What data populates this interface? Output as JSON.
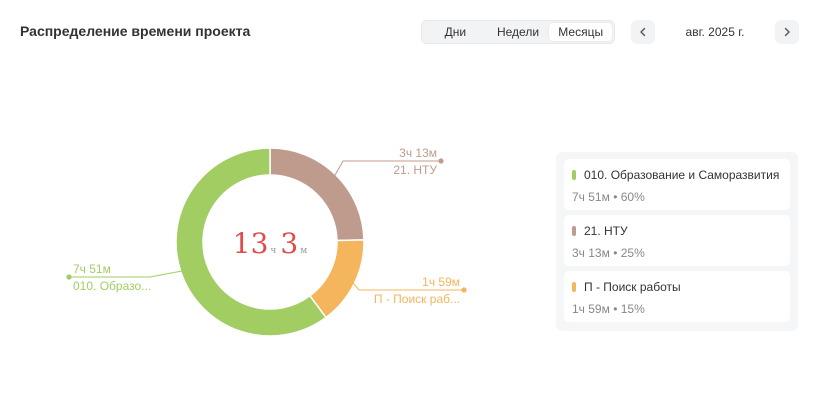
{
  "header": {
    "title": "Распределение времени проекта",
    "tabs": [
      {
        "label": "Дни",
        "active": false
      },
      {
        "label": "Недели",
        "active": false
      },
      {
        "label": "Месяцы",
        "active": true
      }
    ],
    "period_label": "авг. 2025 г."
  },
  "chart_data": {
    "type": "pie",
    "donut": true,
    "center": {
      "hours": "13",
      "hours_unit": "ч",
      "minutes": "3",
      "minutes_unit": "м"
    },
    "slices": [
      {
        "name": "21. НТУ",
        "short_label": "21. НТУ",
        "time": "3ч 13м",
        "percent": 25,
        "minutes": 193,
        "color": "#bf9b8e"
      },
      {
        "name": "П - Поиск работы",
        "short_label": "П - Поиск раб...",
        "time": "1ч 59м",
        "percent": 15,
        "minutes": 119,
        "color": "#f4b55c"
      },
      {
        "name": "010. Образование и Саморазвития",
        "short_label": "010. Образо...",
        "time": "7ч 51м",
        "percent": 60,
        "minutes": 471,
        "color": "#a2cd62"
      }
    ]
  },
  "legend": {
    "items": [
      {
        "name": "010. Образование и Саморазвития",
        "sub": "7ч 51м • 60%",
        "color": "#a2cd62"
      },
      {
        "name": "21. НТУ",
        "sub": "3ч 13м • 25%",
        "color": "#bf9b8e"
      },
      {
        "name": "П - Поиск работы",
        "sub": "1ч 59м • 15%",
        "color": "#f4b55c"
      }
    ]
  }
}
